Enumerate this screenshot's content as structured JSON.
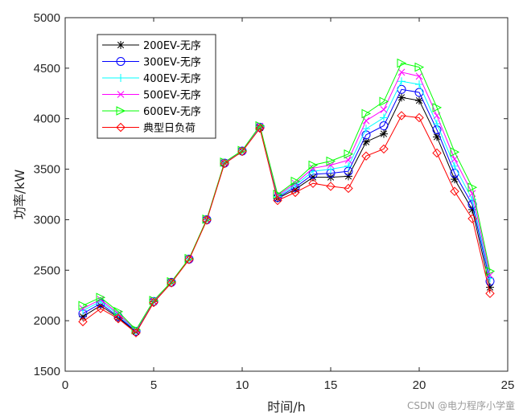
{
  "chart_data": {
    "type": "line",
    "title": "",
    "xlabel": "时间/h",
    "ylabel": "功率/kW",
    "xlim": [
      0,
      25
    ],
    "ylim": [
      1500,
      5000
    ],
    "xticks": [
      0,
      5,
      10,
      15,
      20,
      25
    ],
    "yticks": [
      1500,
      2000,
      2500,
      3000,
      3500,
      4000,
      4500,
      5000
    ],
    "grid": false,
    "legend_position": "top-left",
    "x": [
      1,
      2,
      3,
      4,
      5,
      6,
      7,
      8,
      9,
      10,
      11,
      12,
      13,
      14,
      15,
      16,
      17,
      18,
      19,
      20,
      21,
      22,
      23,
      24
    ],
    "series": [
      {
        "name": "200EV-无序",
        "color": "#000000",
        "marker": "star",
        "values": [
          2040,
          2150,
          2030,
          1890,
          2190,
          2380,
          2610,
          3000,
          3560,
          3680,
          3910,
          3210,
          3300,
          3420,
          3420,
          3430,
          3770,
          3850,
          4210,
          4180,
          3820,
          3400,
          3100,
          2330
        ]
      },
      {
        "name": "300EV-无序",
        "color": "#0000ff",
        "marker": "circle",
        "values": [
          2070,
          2170,
          2040,
          1895,
          2190,
          2380,
          2610,
          3000,
          3560,
          3680,
          3915,
          3220,
          3320,
          3450,
          3460,
          3480,
          3840,
          3930,
          4290,
          4260,
          3890,
          3460,
          3150,
          2390
        ]
      },
      {
        "name": "400EV-无序",
        "color": "#00ffff",
        "marker": "plus",
        "values": [
          2100,
          2190,
          2060,
          1900,
          2195,
          2380,
          2610,
          3000,
          3565,
          3680,
          3920,
          3230,
          3340,
          3480,
          3500,
          3530,
          3900,
          4010,
          4370,
          4340,
          3950,
          3530,
          3200,
          2420
        ]
      },
      {
        "name": "500EV-无序",
        "color": "#ff00ff",
        "marker": "x",
        "values": [
          2120,
          2210,
          2070,
          1905,
          2195,
          2385,
          2610,
          3005,
          3565,
          3685,
          3925,
          3240,
          3360,
          3510,
          3540,
          3590,
          3980,
          4090,
          4460,
          4420,
          4030,
          3600,
          3260,
          2450
        ]
      },
      {
        "name": "600EV-无序",
        "color": "#00ff00",
        "marker": "triangle-right",
        "values": [
          2150,
          2230,
          2090,
          1910,
          2200,
          2385,
          2615,
          3005,
          3570,
          3685,
          3930,
          3250,
          3380,
          3540,
          3580,
          3650,
          4050,
          4170,
          4550,
          4510,
          4110,
          3670,
          3320,
          2490
        ]
      },
      {
        "name": "典型日负荷",
        "color": "#ff0000",
        "marker": "diamond",
        "values": [
          1990,
          2120,
          2020,
          1880,
          2180,
          2375,
          2605,
          2995,
          3555,
          3675,
          3905,
          3190,
          3270,
          3360,
          3330,
          3310,
          3630,
          3700,
          4030,
          4010,
          3660,
          3280,
          3010,
          2270
        ]
      }
    ]
  },
  "watermark": "CSDN @电力程序小学童"
}
